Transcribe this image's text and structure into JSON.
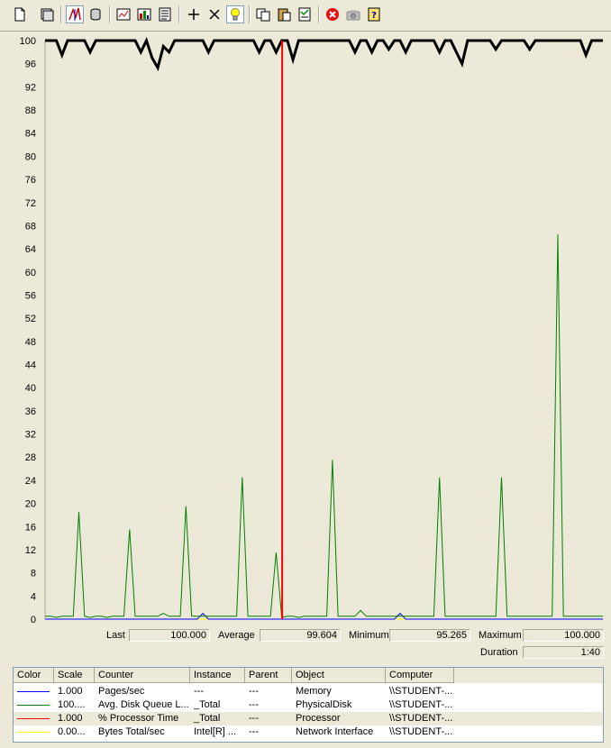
{
  "toolbar": {
    "buttons": [
      {
        "name": "new-counter-set-icon"
      },
      {
        "name": "clear-display-icon"
      },
      {
        "name": "view-current-activity-icon",
        "pressed": true
      },
      {
        "name": "view-log-data-icon"
      },
      {
        "name": "view-graph-icon"
      },
      {
        "name": "view-histogram-icon"
      },
      {
        "name": "view-report-icon"
      },
      {
        "name": "add-counter-icon"
      },
      {
        "name": "delete-counter-icon"
      },
      {
        "name": "highlight-icon"
      },
      {
        "name": "copy-properties-icon"
      },
      {
        "name": "paste-counter-list-icon"
      },
      {
        "name": "properties-icon"
      },
      {
        "name": "freeze-display-icon"
      },
      {
        "name": "update-data-icon"
      },
      {
        "name": "help-icon"
      }
    ]
  },
  "chart_data": {
    "type": "line",
    "y_ticks": [
      "100",
      "96",
      "92",
      "88",
      "84",
      "80",
      "76",
      "72",
      "68",
      "64",
      "60",
      "56",
      "52",
      "48",
      "44",
      "40",
      "36",
      "32",
      "28",
      "24",
      "20",
      "16",
      "12",
      "8",
      "4",
      "0"
    ],
    "ylim": [
      0,
      100
    ],
    "samples": 100,
    "current_sample": 42,
    "colors": {
      "background": "#ece9d8",
      "grid_text": "#000000",
      "current_bar": "#ff0000"
    },
    "series": [
      {
        "name": "% Processor Time",
        "color": "#000000",
        "width": 3,
        "values": [
          100,
          100,
          100,
          97.5,
          100,
          100,
          100,
          100,
          98,
          100,
          100,
          100,
          100,
          100,
          100,
          100,
          100,
          98,
          100,
          97,
          95.3,
          99,
          98,
          100,
          100,
          100,
          100,
          100,
          100,
          98,
          100,
          100,
          100,
          100,
          100,
          100,
          100,
          100,
          98,
          100,
          100,
          98,
          100,
          100,
          96.7,
          100,
          100,
          100,
          100,
          100,
          100,
          100,
          100,
          100,
          100,
          98,
          100,
          100,
          98,
          100,
          100,
          98.5,
          100,
          100,
          98,
          100,
          100,
          100,
          100,
          100,
          98,
          100,
          100,
          98,
          96,
          100,
          100,
          100,
          100,
          100,
          98.5,
          100,
          100,
          100,
          100,
          100,
          98.5,
          100,
          100,
          100,
          100,
          100,
          100,
          100,
          100,
          100,
          97.5,
          100,
          100,
          100
        ]
      },
      {
        "name": "Avg. Disk Queue Length",
        "color": "#008000",
        "width": 1,
        "values": [
          0.5,
          0.5,
          0.3,
          0.5,
          0.5,
          0.5,
          18.5,
          0.5,
          0.3,
          0.5,
          0.5,
          0.3,
          0.5,
          0.5,
          0.5,
          15.5,
          0.5,
          0.5,
          0.5,
          0.5,
          0.5,
          1,
          0.5,
          0.5,
          0.5,
          19.5,
          0.5,
          0.5,
          0.5,
          0.5,
          0.5,
          0.5,
          0.5,
          0.5,
          0.5,
          24.5,
          0.5,
          0.5,
          0.5,
          0.5,
          0.5,
          11.5,
          0.3,
          0.5,
          0.5,
          0.3,
          0.5,
          0.5,
          0.5,
          0.5,
          0.5,
          27.5,
          0.5,
          0.5,
          0.5,
          0.5,
          1.5,
          0.5,
          0.5,
          0.5,
          0.5,
          0.5,
          0.5,
          0.5,
          0.5,
          0.5,
          0.5,
          0.5,
          0.5,
          0.5,
          24.5,
          0.5,
          0.5,
          0.5,
          0.5,
          0.5,
          0.5,
          0.5,
          0.5,
          0.5,
          0.5,
          24.5,
          0.5,
          0.5,
          0.5,
          0.5,
          0.5,
          0.5,
          0.5,
          0.5,
          0.5,
          66.5,
          0.5,
          0.5,
          0.5,
          0.5,
          0.5,
          0.5,
          0.5,
          0.5
        ]
      },
      {
        "name": "Pages/sec",
        "color": "#0000ff",
        "width": 1,
        "values": [
          0,
          0,
          0,
          0,
          0,
          0,
          0,
          0,
          0,
          0,
          0,
          0,
          0,
          0,
          0,
          0,
          0,
          0,
          0,
          0,
          0,
          0,
          0,
          0,
          0,
          0,
          0,
          0,
          1,
          0,
          0,
          0,
          0,
          0,
          0,
          0,
          0,
          0,
          0,
          0,
          0,
          0,
          0,
          0,
          0,
          0,
          0,
          0,
          0,
          0,
          0,
          0,
          0,
          0,
          0,
          0,
          0,
          0,
          0,
          0,
          0,
          0,
          0,
          1,
          0,
          0,
          0,
          0,
          0,
          0,
          0,
          0,
          0,
          0,
          0,
          0,
          0,
          0,
          0,
          0,
          0,
          0,
          0,
          0,
          0,
          0,
          0,
          0,
          0,
          0,
          0,
          0,
          0,
          0,
          0,
          0,
          0,
          0,
          0,
          0
        ]
      },
      {
        "name": "Bytes Total/sec",
        "color": "#ffff00",
        "width": 1,
        "values": [
          0,
          0,
          0,
          0,
          0,
          0,
          0,
          0,
          0,
          0,
          0,
          0,
          0,
          0,
          0,
          0,
          0,
          0,
          0,
          0,
          0,
          0,
          0,
          0,
          0,
          0,
          0,
          0,
          0,
          0,
          0,
          0,
          0,
          0,
          0,
          0,
          0,
          0,
          0,
          0,
          0,
          0,
          0,
          0,
          0,
          0,
          0,
          0,
          0,
          0,
          0,
          0,
          0,
          0,
          0,
          0,
          0,
          0,
          0,
          0,
          0,
          0,
          0,
          0,
          0,
          0,
          0,
          0,
          0,
          0,
          0,
          0,
          0,
          0,
          0,
          0,
          0,
          0,
          0,
          0,
          0,
          0,
          0,
          0,
          0,
          0,
          0,
          0,
          0,
          0,
          0,
          0,
          0,
          0,
          0,
          0,
          0,
          0,
          0,
          0
        ]
      }
    ]
  },
  "stats": {
    "last_label": "Last",
    "last_value": "100.000",
    "average_label": "Average",
    "average_value": "99.604",
    "minimum_label": "Minimum",
    "minimum_value": "95.265",
    "maximum_label": "Maximum",
    "maximum_value": "100.000",
    "duration_label": "Duration",
    "duration_value": "1:40"
  },
  "legend": {
    "headers": [
      "Color",
      "Scale",
      "Counter",
      "Instance",
      "Parent",
      "Object",
      "Computer"
    ],
    "rows": [
      {
        "color": "#0000ff",
        "scale": "1.000",
        "counter": "Pages/sec",
        "instance": "---",
        "parent": "---",
        "object": "Memory",
        "computer": "\\\\STUDENT-..."
      },
      {
        "color": "#008000",
        "scale": "100....",
        "counter": "Avg. Disk Queue L...",
        "instance": "_Total",
        "parent": "---",
        "object": "PhysicalDisk",
        "computer": "\\\\STUDENT-..."
      },
      {
        "color": "#ff0000",
        "scale": "1.000",
        "counter": "% Processor Time",
        "instance": "_Total",
        "parent": "---",
        "object": "Processor",
        "computer": "\\\\STUDENT-..."
      },
      {
        "color": "#ffff00",
        "scale": "0.00...",
        "counter": "Bytes Total/sec",
        "instance": "Intel[R] ...",
        "parent": "---",
        "object": "Network Interface",
        "computer": "\\\\STUDENT-..."
      }
    ]
  }
}
